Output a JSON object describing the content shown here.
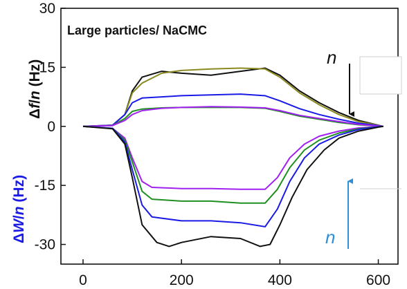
{
  "chart_data": {
    "type": "line",
    "annotation": "Large particles/ NaCMC",
    "ylabel_top": {
      "prefix": "Δ",
      "f": "f",
      "sep": "/",
      "n": "n",
      "unit": " (Hz)"
    },
    "ylabel_bottom": {
      "prefix": "Δ",
      "W": "W",
      "sep": "/",
      "n": "n",
      "unit": " (Hz)"
    },
    "arrow_down_label": "n",
    "arrow_up_label": "n",
    "xlim": [
      -45,
      640
    ],
    "ylim": [
      -35,
      30
    ],
    "xticks": [
      0,
      200,
      400,
      600
    ],
    "yticks": [
      -30,
      -15,
      0,
      15,
      30
    ],
    "colors": {
      "black": "#111111",
      "olive": "#8a8a20",
      "blue": "#1a1ae6",
      "green": "#1f8f1f",
      "purple": "#a020f0",
      "arrow_down": "#111111",
      "arrow_up": "#2e8fd6",
      "ylabel_bottom": "#1a1ae6"
    },
    "series": [
      {
        "color": "#111111",
        "points": [
          [
            0,
            0
          ],
          [
            60,
            0.3
          ],
          [
            85,
            3
          ],
          [
            100,
            9
          ],
          [
            120,
            12.5
          ],
          [
            160,
            14
          ],
          [
            200,
            13.5
          ],
          [
            260,
            13
          ],
          [
            320,
            14
          ],
          [
            370,
            14.8
          ],
          [
            400,
            13
          ],
          [
            440,
            9
          ],
          [
            480,
            6
          ],
          [
            520,
            3.5
          ],
          [
            560,
            1.5
          ],
          [
            600,
            0.3
          ],
          [
            610,
            0
          ]
        ]
      },
      {
        "color": "#8a8a20",
        "points": [
          [
            0,
            0
          ],
          [
            60,
            0.3
          ],
          [
            85,
            3
          ],
          [
            100,
            8.5
          ],
          [
            120,
            11
          ],
          [
            160,
            13.5
          ],
          [
            200,
            14.2
          ],
          [
            260,
            14.6
          ],
          [
            320,
            14.8
          ],
          [
            370,
            14.6
          ],
          [
            400,
            12.5
          ],
          [
            440,
            8.5
          ],
          [
            480,
            5.5
          ],
          [
            520,
            3
          ],
          [
            560,
            1.2
          ],
          [
            600,
            0.3
          ],
          [
            610,
            0
          ]
        ]
      },
      {
        "color": "#1a1ae6",
        "points": [
          [
            0,
            0
          ],
          [
            60,
            0.3
          ],
          [
            85,
            3
          ],
          [
            100,
            6
          ],
          [
            120,
            7.2
          ],
          [
            160,
            7.5
          ],
          [
            200,
            7.8
          ],
          [
            260,
            8
          ],
          [
            320,
            8.2
          ],
          [
            370,
            7.8
          ],
          [
            400,
            6.5
          ],
          [
            440,
            4.5
          ],
          [
            480,
            3
          ],
          [
            520,
            1.8
          ],
          [
            560,
            0.8
          ],
          [
            600,
            0.2
          ],
          [
            610,
            0
          ]
        ]
      },
      {
        "color": "#1f8f1f",
        "points": [
          [
            0,
            0
          ],
          [
            60,
            0.2
          ],
          [
            85,
            2
          ],
          [
            100,
            3.8
          ],
          [
            120,
            4.4
          ],
          [
            160,
            4.7
          ],
          [
            200,
            4.8
          ],
          [
            260,
            4.8
          ],
          [
            320,
            4.8
          ],
          [
            370,
            4.6
          ],
          [
            400,
            3.8
          ],
          [
            440,
            2.6
          ],
          [
            480,
            1.8
          ],
          [
            520,
            1
          ],
          [
            560,
            0.4
          ],
          [
            600,
            0.1
          ],
          [
            610,
            0
          ]
        ]
      },
      {
        "color": "#a020f0",
        "points": [
          [
            0,
            0
          ],
          [
            60,
            0.2
          ],
          [
            85,
            1.5
          ],
          [
            100,
            3
          ],
          [
            120,
            4
          ],
          [
            160,
            4.6
          ],
          [
            200,
            4.8
          ],
          [
            260,
            5
          ],
          [
            320,
            4.9
          ],
          [
            370,
            4.7
          ],
          [
            400,
            4
          ],
          [
            440,
            2.8
          ],
          [
            480,
            2
          ],
          [
            520,
            1.2
          ],
          [
            560,
            0.5
          ],
          [
            600,
            0.1
          ],
          [
            610,
            0
          ]
        ]
      },
      {
        "color": "#a020f0",
        "points": [
          [
            0,
            0
          ],
          [
            60,
            -0.5
          ],
          [
            85,
            -3
          ],
          [
            100,
            -8
          ],
          [
            120,
            -14
          ],
          [
            140,
            -15.5
          ],
          [
            200,
            -15.8
          ],
          [
            260,
            -15.8
          ],
          [
            320,
            -16
          ],
          [
            370,
            -16
          ],
          [
            395,
            -13
          ],
          [
            420,
            -8
          ],
          [
            450,
            -4.5
          ],
          [
            480,
            -2.5
          ],
          [
            520,
            -1.2
          ],
          [
            560,
            -0.4
          ],
          [
            600,
            -0.1
          ],
          [
            610,
            0
          ]
        ]
      },
      {
        "color": "#1f8f1f",
        "points": [
          [
            0,
            0
          ],
          [
            60,
            -0.5
          ],
          [
            85,
            -3.5
          ],
          [
            100,
            -9
          ],
          [
            120,
            -16.5
          ],
          [
            140,
            -18.5
          ],
          [
            200,
            -19
          ],
          [
            260,
            -19
          ],
          [
            320,
            -19.5
          ],
          [
            370,
            -19.5
          ],
          [
            395,
            -16
          ],
          [
            420,
            -10.5
          ],
          [
            450,
            -6
          ],
          [
            480,
            -3.5
          ],
          [
            520,
            -1.7
          ],
          [
            560,
            -0.6
          ],
          [
            600,
            -0.1
          ],
          [
            610,
            0
          ]
        ]
      },
      {
        "color": "#1a1ae6",
        "points": [
          [
            0,
            0
          ],
          [
            60,
            -0.5
          ],
          [
            85,
            -4
          ],
          [
            100,
            -11
          ],
          [
            120,
            -20
          ],
          [
            140,
            -23
          ],
          [
            200,
            -24
          ],
          [
            260,
            -24
          ],
          [
            320,
            -24.5
          ],
          [
            370,
            -25.5
          ],
          [
            395,
            -21
          ],
          [
            420,
            -14
          ],
          [
            450,
            -8
          ],
          [
            480,
            -4.5
          ],
          [
            520,
            -2.2
          ],
          [
            560,
            -0.8
          ],
          [
            600,
            -0.1
          ],
          [
            610,
            0
          ]
        ]
      },
      {
        "color": "#111111",
        "points": [
          [
            0,
            0
          ],
          [
            60,
            -0.6
          ],
          [
            85,
            -4.5
          ],
          [
            100,
            -13
          ],
          [
            120,
            -25
          ],
          [
            150,
            -29.5
          ],
          [
            175,
            -30.5
          ],
          [
            200,
            -29.5
          ],
          [
            260,
            -28
          ],
          [
            320,
            -28.5
          ],
          [
            360,
            -30.5
          ],
          [
            380,
            -30
          ],
          [
            400,
            -25
          ],
          [
            425,
            -18
          ],
          [
            455,
            -11
          ],
          [
            490,
            -6
          ],
          [
            520,
            -3
          ],
          [
            560,
            -1.2
          ],
          [
            600,
            -0.2
          ],
          [
            610,
            0
          ]
        ]
      }
    ]
  }
}
